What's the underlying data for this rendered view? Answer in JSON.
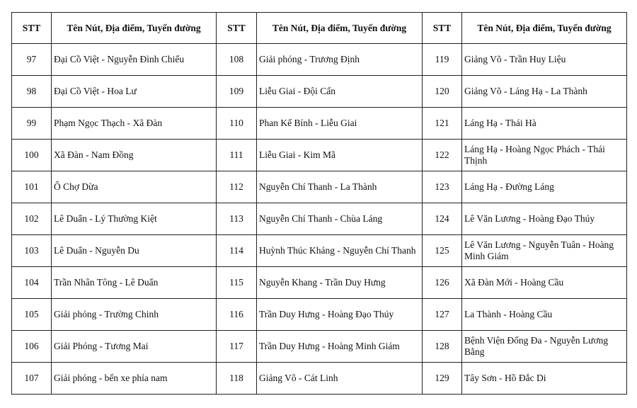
{
  "headers": [
    "STT",
    "Tên Nút, Địa điểm, Tuyến đường",
    "STT",
    "Tên Nút, Địa điểm, Tuyến đường",
    "STT",
    "Tên Nút, Địa điểm, Tuyến đường"
  ],
  "rows": [
    [
      [
        "97",
        "Đại Cồ Việt - Nguyễn Đình Chiểu"
      ],
      [
        "108",
        "Giải phóng - Trương Định"
      ],
      [
        "119",
        "Giảng Võ - Trần Huy Liệu"
      ]
    ],
    [
      [
        "98",
        "Đại Cồ Việt - Hoa Lư"
      ],
      [
        "109",
        "Liễu Giai - Đội Cấn"
      ],
      [
        "120",
        "Giảng Võ - Láng Hạ - La Thành"
      ]
    ],
    [
      [
        "99",
        "Phạm Ngọc Thạch - Xã Đàn"
      ],
      [
        "110",
        "Phan Kế Bính - Liễu Giai"
      ],
      [
        "121",
        "Láng Hạ - Thái Hà"
      ]
    ],
    [
      [
        "100",
        "Xã Đàn - Nam Đồng"
      ],
      [
        "111",
        "Liễu Giai - Kim Mã"
      ],
      [
        "122",
        "Láng Hạ - Hoàng Ngọc Phách - Thái Thịnh"
      ]
    ],
    [
      [
        "101",
        "Ô Chợ Dừa"
      ],
      [
        "112",
        "Nguyễn Chí Thanh - La Thành"
      ],
      [
        "123",
        "Láng Hạ - Đường Láng"
      ]
    ],
    [
      [
        "102",
        "Lê Duẩn - Lý Thường Kiệt"
      ],
      [
        "113",
        "Nguyễn Chí Thanh - Chùa Láng"
      ],
      [
        "124",
        "Lê Văn Lương - Hoàng Đạo Thúy"
      ]
    ],
    [
      [
        "103",
        "Lê Duẩn - Nguyễn Du"
      ],
      [
        "114",
        "Huỳnh Thúc Kháng - Nguyễn Chí Thanh"
      ],
      [
        "125",
        "Lê Văn Lương - Nguyễn Tuân - Hoàng Minh Giám"
      ]
    ],
    [
      [
        "104",
        "Trần Nhân Tông - Lê Duẩn"
      ],
      [
        "115",
        "Nguyễn Khang - Trần Duy Hưng"
      ],
      [
        "126",
        "Xã Đàn Mới - Hoàng Cầu"
      ]
    ],
    [
      [
        "105",
        "Giải phóng - Trường Chinh"
      ],
      [
        "116",
        "Trần Duy Hưng - Hoàng Đạo Thúy"
      ],
      [
        "127",
        "La Thành - Hoàng Cầu"
      ]
    ],
    [
      [
        "106",
        "Giải Phóng - Tương Mai"
      ],
      [
        "117",
        "Trần Duy Hưng - Hoàng Minh Giám"
      ],
      [
        "128",
        "Bệnh Viện Đống Đa - Nguyễn Lương Bằng"
      ]
    ],
    [
      [
        "107",
        "Giải phóng - bến xe phía nam"
      ],
      [
        "118",
        "Giảng Võ - Cát Linh"
      ],
      [
        "129",
        "Tây Sơn - Hồ Đắc Di"
      ]
    ]
  ]
}
